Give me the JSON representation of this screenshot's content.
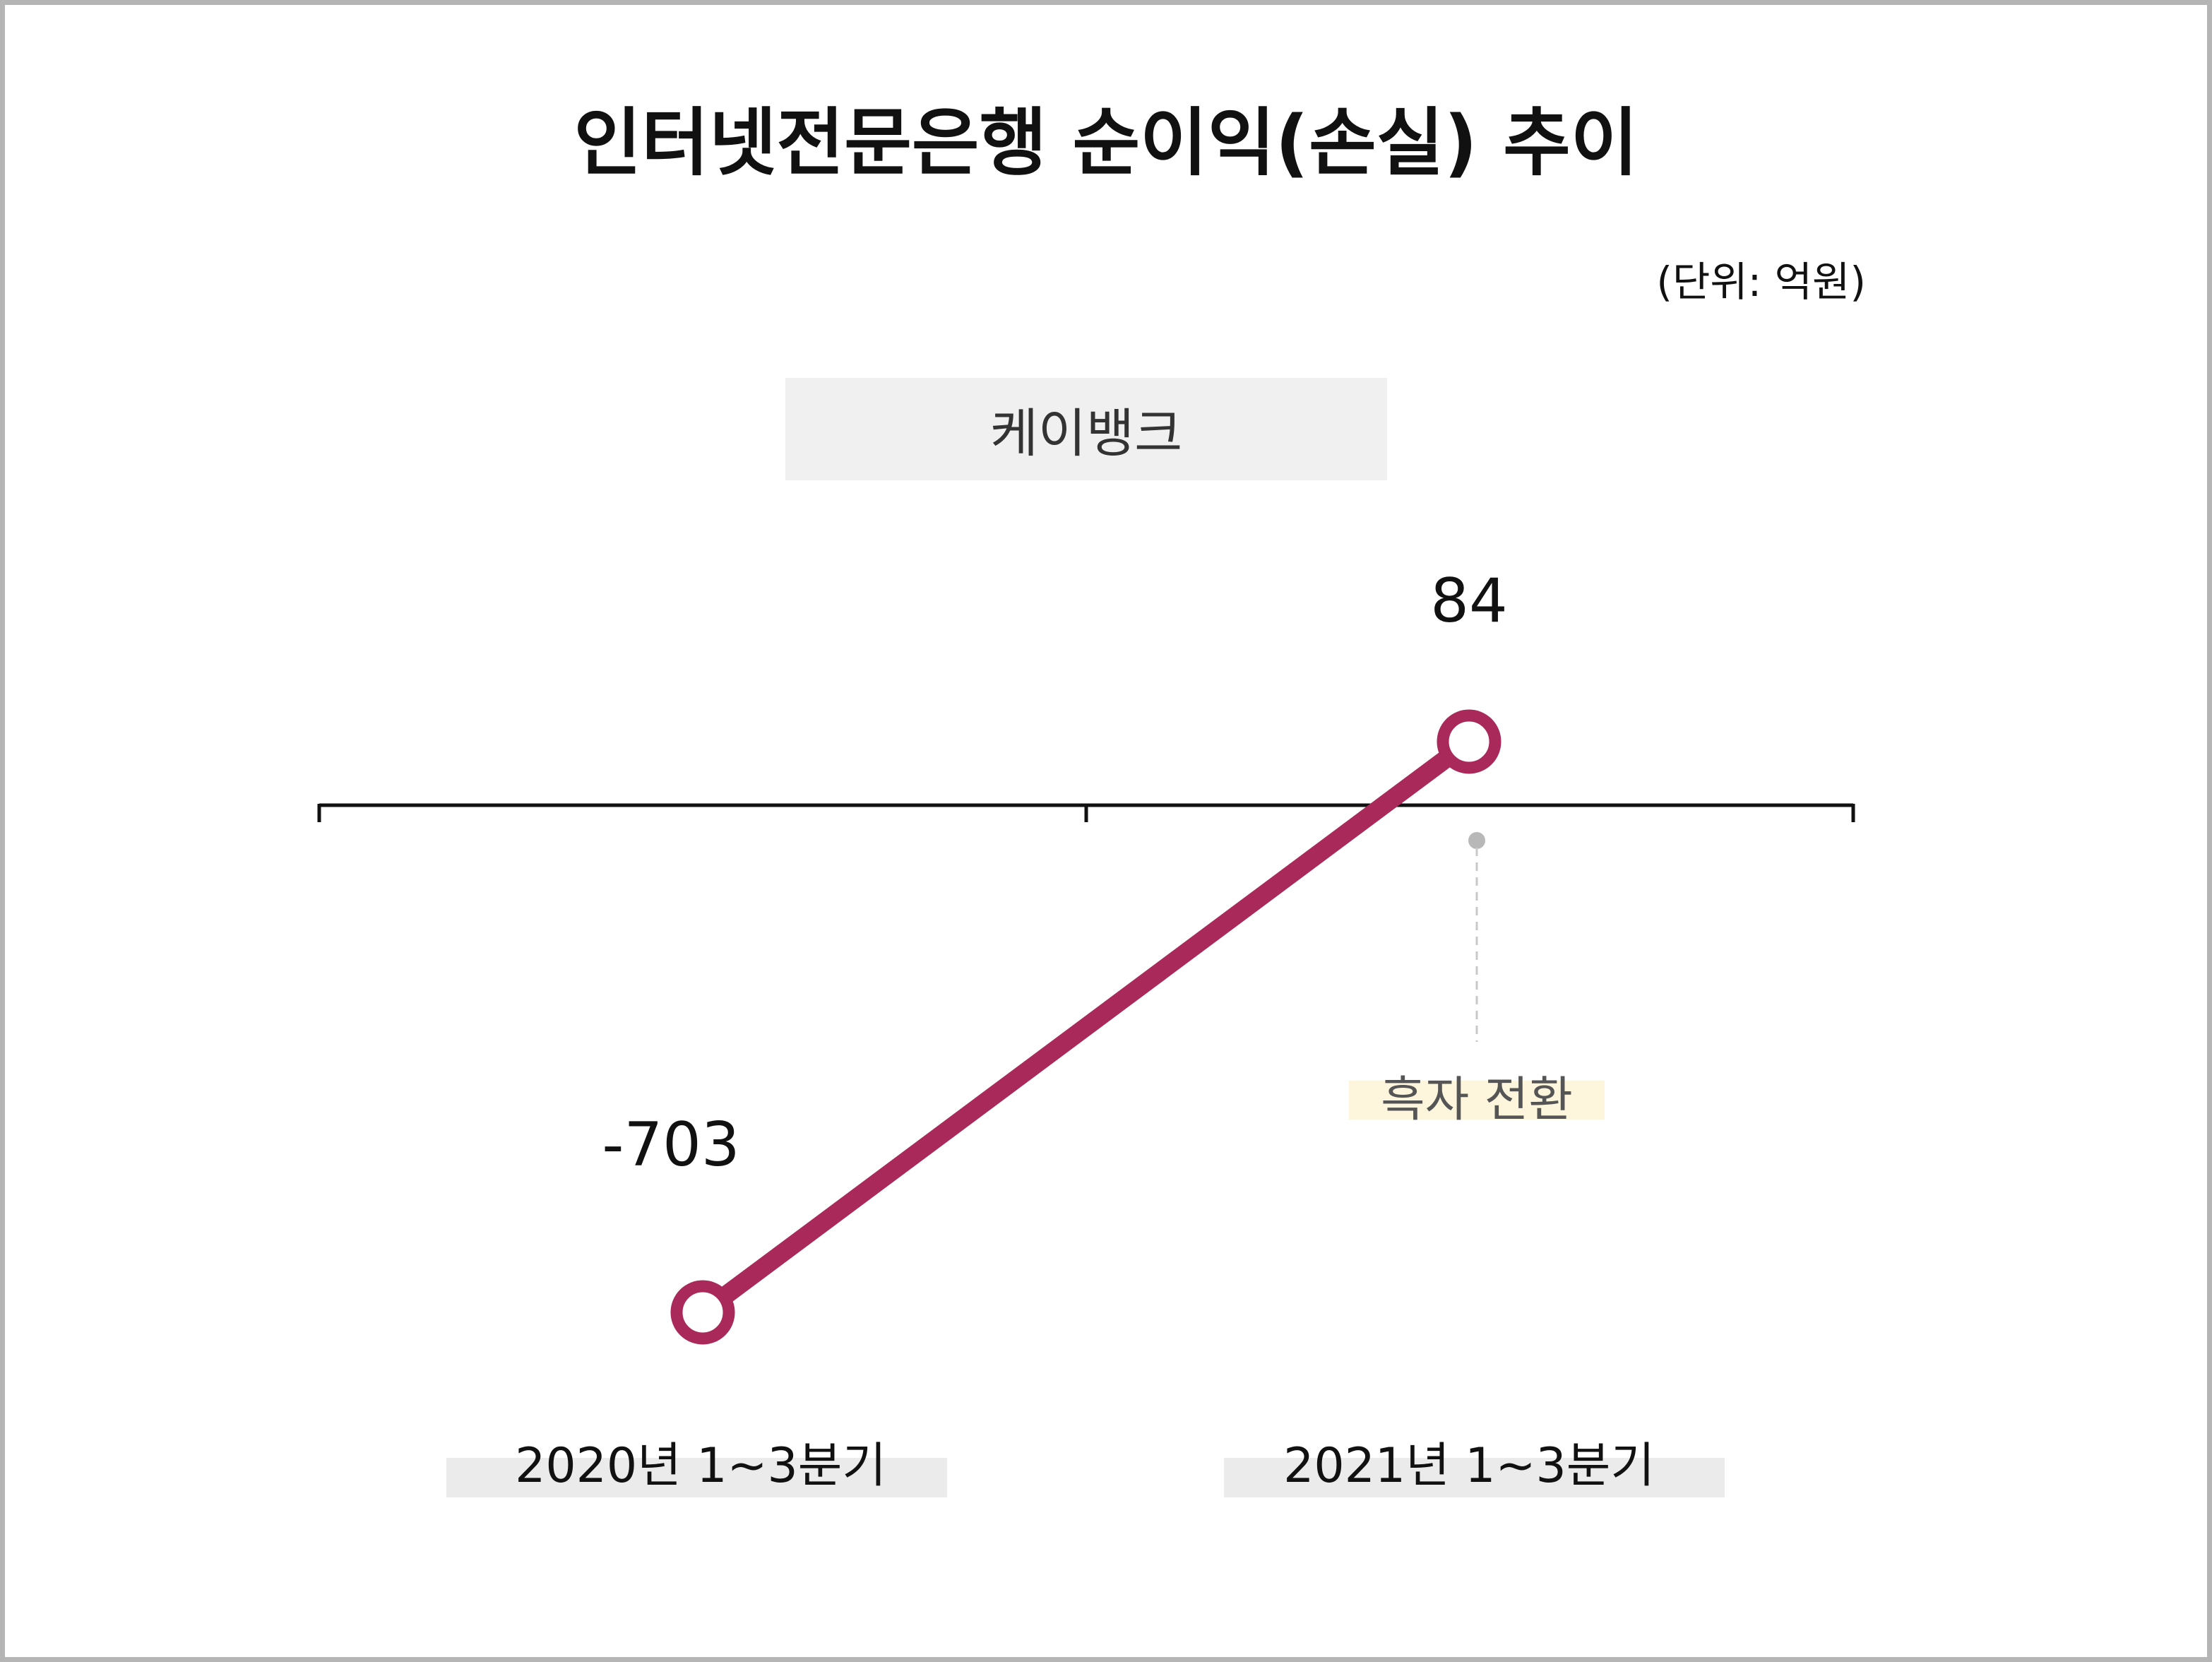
{
  "title": "인터넷전문은행 순이익(손실) 추이",
  "unit_note": "(단위: 억원)",
  "legend": {
    "series_name": "케이뱅크"
  },
  "annotation": {
    "text": "흑자 전환"
  },
  "colors": {
    "line": "#a8295a",
    "marker_fill": "#ffffff",
    "axis": "#111111",
    "legend_bg": "#f0f0f0",
    "label_bg": "#ebebeb",
    "annotation_bg": "#fdf5dc",
    "leader": "#c8c8c8"
  },
  "chart_data": {
    "type": "line",
    "categories": [
      "2020년 1~3분기",
      "2021년 1~3분기"
    ],
    "series": [
      {
        "name": "케이뱅크",
        "values": [
          -703,
          84
        ]
      }
    ],
    "data_labels": [
      "-703",
      "84"
    ],
    "ylim": [
      -800,
      100
    ],
    "grid": false,
    "xlabel": "",
    "ylabel": ""
  }
}
